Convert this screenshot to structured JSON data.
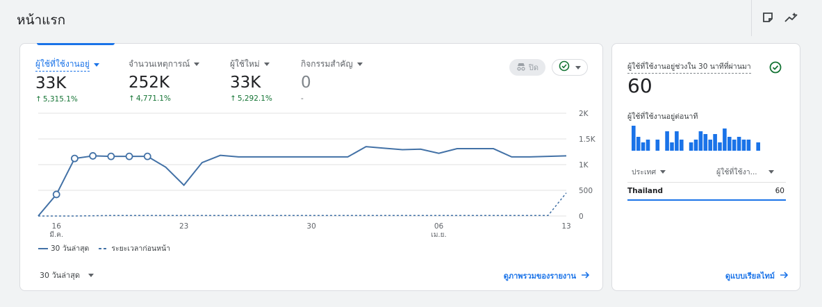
{
  "header": {
    "title": "หน้าแรก",
    "icons": [
      "note-icon",
      "insights-icon"
    ]
  },
  "metrics": [
    {
      "label": "ผู้ใช้ที่ใช้งานอยู่",
      "value": "33K",
      "change": "5,315.1%",
      "active": true
    },
    {
      "label": "จำนวนเหตุการณ์",
      "value": "252K",
      "change": "4,771.1%",
      "active": false
    },
    {
      "label": "ผู้ใช้ใหม่",
      "value": "33K",
      "change": "5,292.1%",
      "active": false
    },
    {
      "label": "กิจกรรมสำคัญ",
      "value": "0",
      "change": "-",
      "active": false
    }
  ],
  "controls": {
    "off_label": "ปิด",
    "off_icon": "incognito-icon",
    "check_icon": "check-circle-icon"
  },
  "chart_data": {
    "type": "line",
    "x_tick_labels": [
      {
        "day": "16",
        "month": "มี.ค."
      },
      {
        "day": "23",
        "month": ""
      },
      {
        "day": "30",
        "month": ""
      },
      {
        "day": "06",
        "month": "เม.ย."
      },
      {
        "day": "13",
        "month": ""
      }
    ],
    "x_tick_index": [
      1,
      8,
      15,
      22,
      29
    ],
    "y_ticks": [
      "0",
      "500",
      "1K",
      "1.5K",
      "2K"
    ],
    "ylim": [
      0,
      2000
    ],
    "series": [
      {
        "name": "30 วันล่าสุด",
        "style": "solid",
        "color": "#4271a6",
        "values": [
          0,
          420,
          1120,
          1170,
          1160,
          1160,
          1160,
          950,
          600,
          1040,
          1180,
          1150,
          1150,
          1150,
          1150,
          1150,
          1150,
          1150,
          1350,
          1320,
          1290,
          1300,
          1220,
          1310,
          1310,
          1310,
          1150,
          1150,
          1160,
          1170
        ],
        "markers_at": [
          1,
          2,
          3,
          4,
          5,
          6
        ]
      },
      {
        "name": "ระยะเวลาก่อนหน้า",
        "style": "dashed",
        "color": "#4271a6",
        "values": [
          0,
          0,
          0,
          5,
          10,
          10,
          10,
          10,
          10,
          10,
          10,
          10,
          10,
          10,
          10,
          10,
          10,
          10,
          10,
          10,
          10,
          10,
          10,
          10,
          10,
          10,
          10,
          10,
          10,
          450
        ]
      }
    ],
    "legend": [
      "30 วันล่าสุด",
      "ระยะเวลาก่อนหน้า"
    ],
    "grid": true
  },
  "footer": {
    "range_label": "30 วันล่าสุด",
    "link_label": "ดูภาพรวมของรายงาน"
  },
  "realtime": {
    "title": "ผู้ใช้ที่ใช้งานอยู่ช่วงใน 30 นาทีที่ผ่านมา",
    "value": "60",
    "subtitle": "ผู้ใช้ที่ใช้งานอยู่ต่อนาที",
    "bars_per_minute": [
      9,
      5,
      3,
      4,
      0,
      4,
      0,
      7,
      3,
      7,
      4,
      0,
      3,
      4,
      7,
      6,
      4,
      6,
      3,
      8,
      5,
      4,
      5,
      4,
      4,
      0,
      3
    ],
    "column_country": "ประเทศ",
    "column_users": "ผู้ใช้ที่ใช้งา...",
    "rows": [
      {
        "country": "Thailand",
        "users": "60"
      }
    ],
    "link_label": "ดูแบบเรียลไทม์"
  },
  "colors": {
    "accent": "#1a73e8",
    "line": "#4271a6",
    "positive": "#137333",
    "bar": "#1a73e8"
  }
}
